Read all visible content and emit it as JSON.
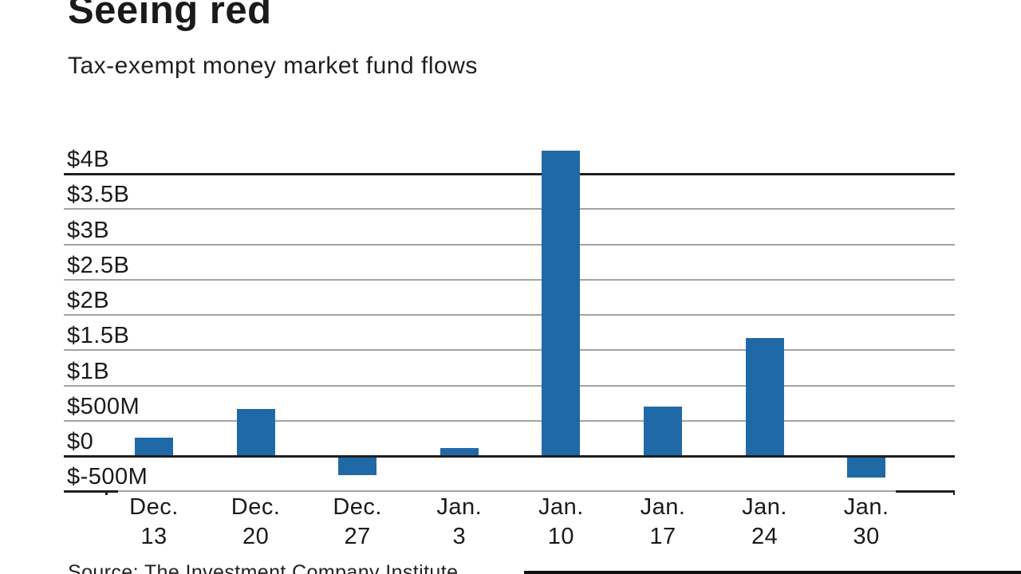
{
  "header": {
    "title": "Seeing red",
    "subtitle": "Tax-exempt money market fund flows"
  },
  "footer": {
    "source_note": "Source: The Investment Company Institute"
  },
  "chart_data": {
    "type": "bar",
    "title": "Seeing red",
    "subtitle": "Tax-exempt money market fund flows",
    "unit": "USD millions (weekly fund flows)",
    "categories": [
      "Dec. 13",
      "Dec. 20",
      "Dec. 27",
      "Jan. 3",
      "Jan. 10",
      "Jan. 17",
      "Jan. 24",
      "Jan. 30"
    ],
    "category_labels_two_line": [
      [
        "Dec.",
        "13"
      ],
      [
        "Dec.",
        "20"
      ],
      [
        "Dec.",
        "27"
      ],
      [
        "Jan.",
        "3"
      ],
      [
        "Jan.",
        "10"
      ],
      [
        "Jan.",
        "17"
      ],
      [
        "Jan.",
        "24"
      ],
      [
        "Jan.",
        "30"
      ]
    ],
    "values_millions": [
      260,
      670,
      -275,
      110,
      4330,
      700,
      1670,
      -300
    ],
    "y_ticks": [
      {
        "label": "$4B",
        "value_millions": 4000
      },
      {
        "label": "$3.5B",
        "value_millions": 3500
      },
      {
        "label": "$3B",
        "value_millions": 3000
      },
      {
        "label": "$2.5B",
        "value_millions": 2500
      },
      {
        "label": "$2B",
        "value_millions": 2000
      },
      {
        "label": "$1.5B",
        "value_millions": 1500
      },
      {
        "label": "$1B",
        "value_millions": 1000
      },
      {
        "label": "$500M",
        "value_millions": 500
      },
      {
        "label": "$0",
        "value_millions": 0
      },
      {
        "label": "$-500M",
        "value_millions": -500
      }
    ],
    "ylim_millions": [
      -500,
      4330
    ],
    "dark_lines_at": [
      4000,
      0
    ],
    "grid": true,
    "legend": null,
    "colors": {
      "bar": "#2069a7",
      "grid_line": "#a3a3a3",
      "axis_line": "#1f1f1f",
      "text": "#1a1a1a"
    }
  }
}
